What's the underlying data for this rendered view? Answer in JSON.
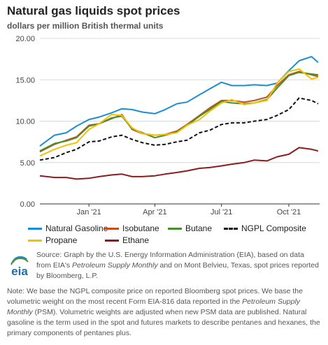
{
  "title": "Natural gas liquids spot prices",
  "subtitle": "dollars per million British thermal units",
  "logo_text": "eia",
  "source_parts": [
    "Source: Graph by the U.S. Energy Information Administration (EIA), based on data from EIA's ",
    "Petroleum Supply Monthly",
    " and on Mont Belvieu, Texas, spot prices reported by Bloomberg, L.P."
  ],
  "note_parts": [
    "Note: We base the NGPL composite price on reported Bloomberg spot prices. We base the volumetric weight on the most recent Form EIA-816 data reported in the ",
    "Petroleum Supply Monthly",
    " (PSM). Volumetric weights are adjusted when new PSM data are published. Natural gasoline is the term used in the spot and futures markets to describe pentanes and hexanes, the primary components of pentanes plus."
  ],
  "chart_data": {
    "type": "line",
    "title": "Natural gas liquids spot prices",
    "ylabel": "dollars per million British thermal units",
    "ylim": [
      0,
      20
    ],
    "yticks": [
      0,
      5,
      10,
      15,
      20
    ],
    "ytick_labels": [
      "0.00",
      "5.00",
      "10.00",
      "15.00",
      "20.00"
    ],
    "xlim": [
      "2020-10-26",
      "2021-11-12"
    ],
    "xticks": [
      "2021-01-01",
      "2021-04-01",
      "2021-07-01",
      "2021-10-01"
    ],
    "xtick_labels": [
      "Jan '21",
      "Apr '21",
      "Jul '21",
      "Oct '21"
    ],
    "grid": "horizontal",
    "legend_position": "bottom",
    "x": [
      "2020-10-26",
      "2020-11-15",
      "2020-12-01",
      "2020-12-15",
      "2021-01-01",
      "2021-01-15",
      "2021-02-01",
      "2021-02-15",
      "2021-03-01",
      "2021-03-15",
      "2021-04-01",
      "2021-04-15",
      "2021-05-01",
      "2021-05-15",
      "2021-06-01",
      "2021-06-15",
      "2021-07-01",
      "2021-07-15",
      "2021-08-01",
      "2021-08-15",
      "2021-09-01",
      "2021-09-15",
      "2021-10-01",
      "2021-10-15",
      "2021-11-01",
      "2021-11-10"
    ],
    "series": [
      {
        "name": "Natural Gasoline",
        "color": "#1b8dd7",
        "dash": false,
        "values": [
          7.0,
          8.3,
          8.6,
          9.4,
          10.2,
          10.5,
          11.0,
          11.5,
          11.4,
          11.1,
          10.9,
          11.4,
          12.1,
          12.3,
          13.2,
          13.9,
          14.7,
          14.3,
          14.3,
          14.4,
          14.3,
          14.6,
          16.1,
          17.3,
          17.8,
          17.1
        ]
      },
      {
        "name": "Isobutane",
        "color": "#c5501d",
        "dash": false,
        "values": [
          6.3,
          7.2,
          7.7,
          8.1,
          9.5,
          9.7,
          10.3,
          10.8,
          9.0,
          8.5,
          8.3,
          8.4,
          8.8,
          9.6,
          10.7,
          11.6,
          12.5,
          12.5,
          12.3,
          12.5,
          12.9,
          14.3,
          15.6,
          16.0,
          15.6,
          15.4
        ]
      },
      {
        "name": "Butane",
        "color": "#4a8f2c",
        "dash": false,
        "values": [
          6.4,
          7.3,
          7.6,
          8.0,
          9.4,
          9.7,
          10.4,
          10.6,
          9.1,
          8.6,
          8.0,
          8.3,
          8.7,
          9.5,
          10.6,
          11.4,
          12.4,
          12.2,
          12.1,
          12.2,
          12.6,
          14.0,
          15.5,
          15.9,
          15.7,
          15.6
        ]
      },
      {
        "name": "NGPL Composite",
        "color": "#111111",
        "dash": true,
        "values": [
          5.3,
          5.6,
          6.2,
          6.6,
          7.5,
          7.6,
          8.1,
          8.3,
          7.8,
          7.4,
          7.1,
          7.2,
          7.5,
          7.7,
          8.6,
          8.9,
          9.6,
          9.8,
          9.8,
          10.0,
          10.2,
          10.7,
          11.4,
          12.8,
          12.5,
          12.1
        ]
      },
      {
        "name": "Propane",
        "color": "#f2c200",
        "dash": false,
        "values": [
          5.8,
          6.6,
          7.1,
          7.4,
          9.0,
          9.7,
          10.8,
          10.7,
          9.2,
          8.5,
          8.3,
          8.4,
          8.6,
          9.5,
          10.2,
          11.2,
          12.2,
          12.6,
          12.0,
          12.2,
          12.5,
          14.6,
          16.0,
          16.3,
          15.1,
          15.3
        ]
      },
      {
        "name": "Ethane",
        "color": "#8c1c1c",
        "dash": false,
        "values": [
          3.4,
          3.2,
          3.2,
          3.0,
          3.1,
          3.3,
          3.5,
          3.6,
          3.3,
          3.3,
          3.4,
          3.6,
          3.8,
          4.0,
          4.3,
          4.4,
          4.6,
          4.8,
          5.0,
          5.3,
          5.2,
          5.7,
          6.0,
          6.8,
          6.6,
          6.4
        ]
      }
    ]
  }
}
